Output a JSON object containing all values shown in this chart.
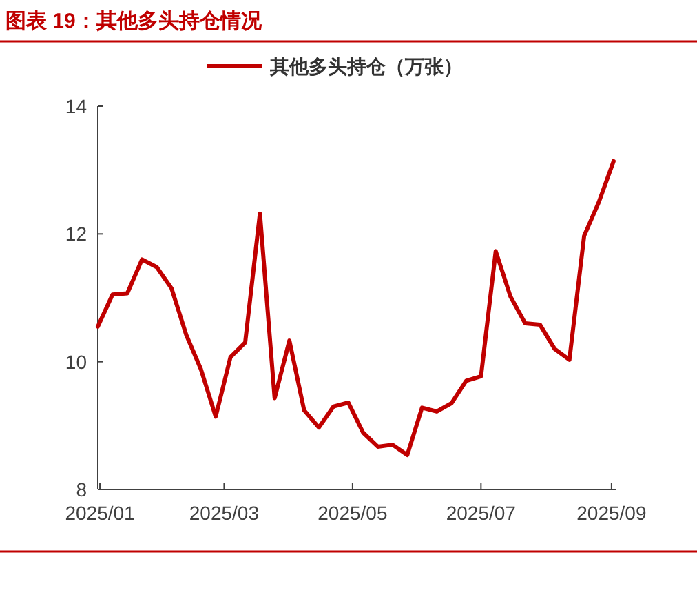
{
  "chart_data": {
    "type": "line",
    "title": "图表 19：其他多头持仓情况",
    "x": [
      "2024-12-31",
      "2025-01-07",
      "2025-01-14",
      "2025-01-21",
      "2025-01-28",
      "2025-02-04",
      "2025-02-11",
      "2025-02-18",
      "2025-02-25",
      "2025-03-04",
      "2025-03-11",
      "2025-03-18",
      "2025-03-25",
      "2025-04-01",
      "2025-04-08",
      "2025-04-15",
      "2025-04-22",
      "2025-04-29",
      "2025-05-06",
      "2025-05-13",
      "2025-05-20",
      "2025-05-27",
      "2025-06-03",
      "2025-06-10",
      "2025-06-17",
      "2025-06-24",
      "2025-07-01",
      "2025-07-08",
      "2025-07-15",
      "2025-07-22",
      "2025-07-29",
      "2025-08-05",
      "2025-08-12",
      "2025-08-19",
      "2025-08-26",
      "2025-09-02"
    ],
    "series": [
      {
        "name": "其他多头持仓（万张）",
        "color": "#c00000",
        "values": [
          10.55,
          11.05,
          11.07,
          11.6,
          11.48,
          11.15,
          10.42,
          9.88,
          9.14,
          10.07,
          10.3,
          12.32,
          9.43,
          10.33,
          9.24,
          8.97,
          9.3,
          9.36,
          8.89,
          8.67,
          8.7,
          8.54,
          9.28,
          9.22,
          9.35,
          9.7,
          9.77,
          11.73,
          11.02,
          10.6,
          10.58,
          10.2,
          10.03,
          11.97,
          12.5,
          13.14
        ]
      }
    ],
    "xlim": [
      "2024-12-31",
      "2025-09-03"
    ],
    "xticks": [
      {
        "value": "2025-01-01",
        "label": "2025/01"
      },
      {
        "value": "2025-03-01",
        "label": "2025/03"
      },
      {
        "value": "2025-05-01",
        "label": "2025/05"
      },
      {
        "value": "2025-07-01",
        "label": "2025/07"
      },
      {
        "value": "2025-09-01",
        "label": "2025/09"
      }
    ],
    "ylim": [
      8,
      14
    ],
    "yticks": [
      8,
      10,
      12,
      14
    ],
    "grid": false,
    "legend": "top",
    "line_style": "solid"
  }
}
